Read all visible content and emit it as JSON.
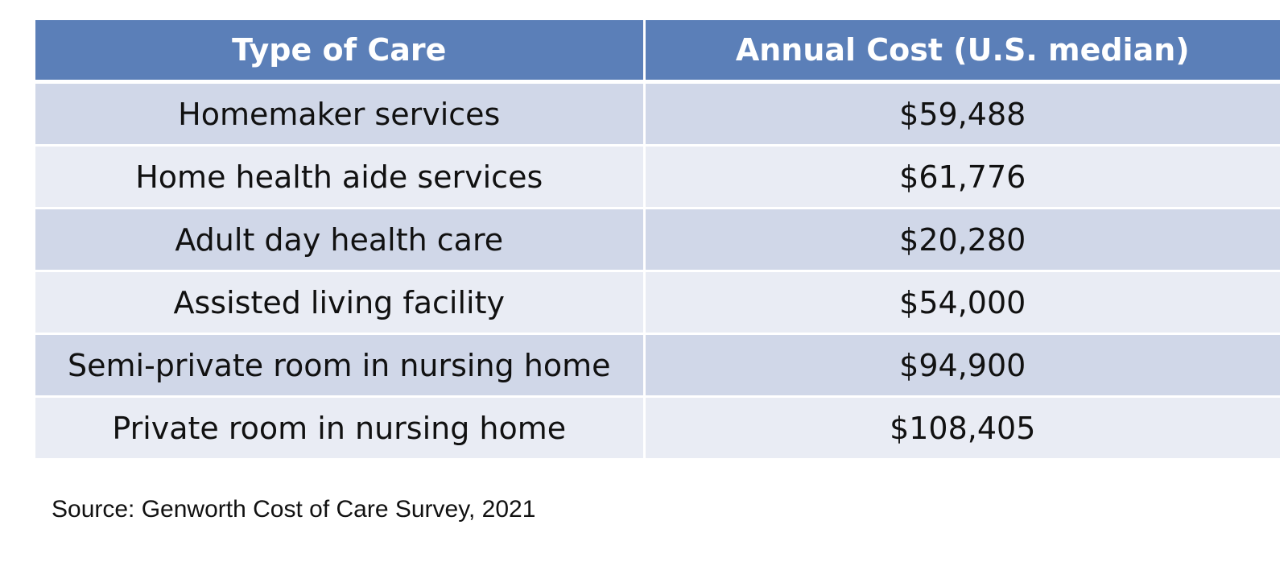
{
  "chart_data": {
    "type": "table",
    "columns": [
      "Type of Care",
      "Annual Cost (U.S. median)"
    ],
    "rows": [
      [
        "Homemaker services",
        "$59,488"
      ],
      [
        "Home health aide services",
        "$61,776"
      ],
      [
        "Adult day health care",
        "$20,280"
      ],
      [
        "Assisted living facility",
        "$54,000"
      ],
      [
        "Semi-private room in nursing home",
        "$94,900"
      ],
      [
        "Private room in nursing home",
        "$108,405"
      ]
    ],
    "source": "Source: Genworth Cost of Care Survey, 2021"
  },
  "colors": {
    "header_bg": "#5b7fb8",
    "row_dark": "#d0d7e8",
    "row_light": "#e9ecf4"
  }
}
